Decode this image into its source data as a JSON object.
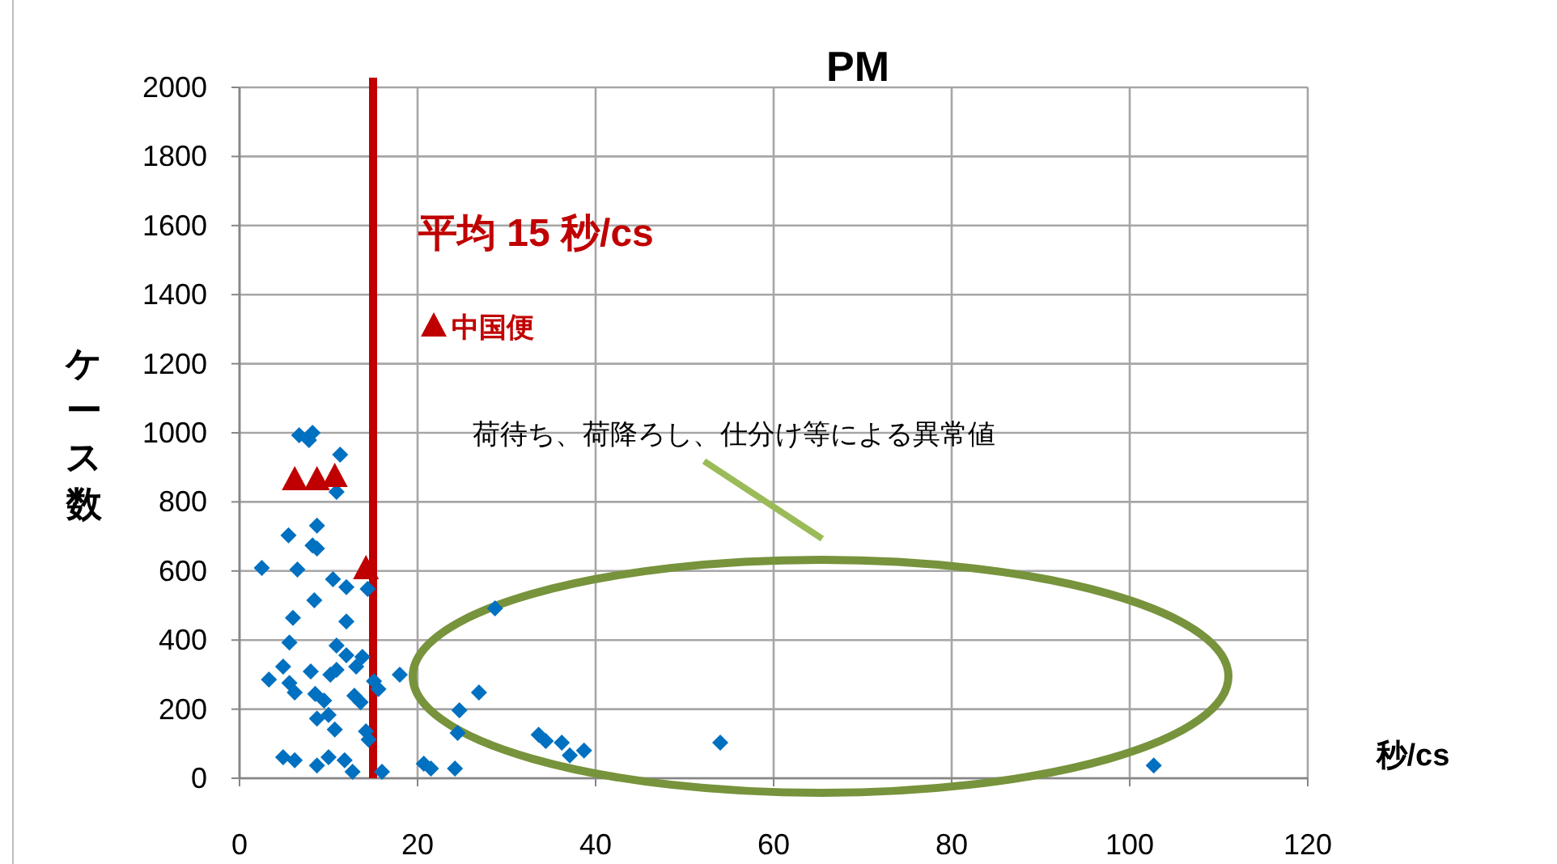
{
  "chart_data": {
    "type": "scatter",
    "title": "PM",
    "xlabel": "秒/cs",
    "ylabel": "ケース数",
    "xlim": [
      0,
      120
    ],
    "xticks": [
      0,
      20,
      40,
      60,
      80,
      100,
      120
    ],
    "ylim": [
      0,
      2000
    ],
    "yticks": [
      0,
      200,
      400,
      600,
      800,
      1000,
      1200,
      1400,
      1600,
      1800,
      2000
    ],
    "grid": true,
    "legend": "top left",
    "series": [
      {
        "color": "#0070c0",
        "marker": "diamond",
        "x": [
          6.7,
          8.2,
          7.8,
          11.3,
          10.9,
          8.7,
          5.5,
          8.2,
          8.7,
          2.5,
          6.5,
          10.5,
          12.0,
          14.4,
          8.4,
          6.0,
          12.0,
          5.6,
          10.9,
          12.0,
          13.8,
          13.1,
          4.9,
          8.0,
          10.2,
          10.9,
          3.3,
          18.0,
          5.6,
          6.2,
          8.5,
          9.5,
          12.9,
          13.6,
          15.1,
          15.6,
          10.0,
          8.7,
          10.7,
          14.2,
          14.5,
          4.9,
          6.2,
          8.7,
          10.0,
          11.8,
          12.7,
          16.0,
          28.7,
          26.9,
          24.7,
          24.5,
          20.7,
          21.5,
          24.2,
          33.6,
          34.4,
          36.2,
          37.1,
          38.7,
          54.0,
          102.7
        ],
        "values": [
          993,
          1000,
          979,
          937,
          829,
          731,
          703,
          674,
          665,
          609,
          604,
          576,
          553,
          548,
          515,
          464,
          454,
          393,
          384,
          356,
          351,
          323,
          323,
          309,
          300,
          314,
          286,
          300,
          276,
          248,
          244,
          225,
          239,
          220,
          281,
          258,
          183,
          173,
          141,
          136,
          112,
          61,
          52,
          37,
          61,
          52,
          19,
          19,
          492,
          248,
          197,
          131,
          42,
          28,
          28,
          126,
          108,
          103,
          66,
          80,
          103,
          37
        ]
      },
      {
        "name": "中国便",
        "color": "#c00000",
        "marker": "triangle",
        "x": [
          6.2,
          8.7,
          10.7,
          14.2
        ],
        "values": [
          862,
          862,
          871,
          604
        ]
      }
    ],
    "ref_lines": [
      {
        "axis": "x",
        "value": 15,
        "label": "平均 15 秒/cs",
        "color": "#c00000",
        "line_style": "solid"
      }
    ],
    "annotations": [
      "荷待ち、荷降ろし、仕分け等による異常値"
    ]
  }
}
